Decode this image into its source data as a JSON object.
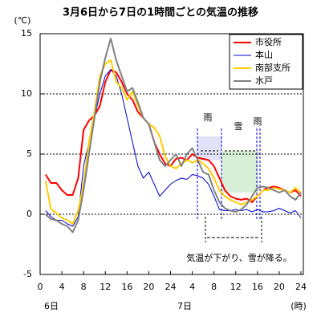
{
  "chart_data": {
    "type": "line",
    "title": "3月6日から7日の1時間ごとの気温の推移",
    "y_label": "(℃)",
    "x_label": "(時)",
    "day_labels": [
      "6日",
      "7日"
    ],
    "annotations": [
      "雨",
      "雪",
      "雨",
      "気温が下がり、雪が降る。"
    ],
    "x": [
      1,
      2,
      3,
      4,
      5,
      6,
      7,
      8,
      9,
      10,
      11,
      12,
      13,
      14,
      15,
      16,
      17,
      18,
      19,
      20,
      21,
      22,
      23,
      24,
      25,
      26,
      27,
      28,
      29,
      30,
      31,
      32,
      33,
      34,
      35,
      36,
      37,
      38,
      39,
      40,
      41,
      42,
      43,
      44,
      45,
      46,
      47,
      48
    ],
    "series": [
      {
        "name": "市役所",
        "color": "#ff0000",
        "values": [
          3.3,
          2.6,
          2.6,
          2.0,
          1.6,
          1.6,
          3.0,
          7.0,
          7.8,
          8.2,
          9.0,
          11.0,
          12.0,
          11.8,
          11.0,
          10.0,
          9.5,
          8.5,
          8.0,
          7.5,
          6.0,
          5.0,
          4.2,
          4.0,
          4.6,
          4.7,
          4.5,
          5.0,
          4.7,
          4.6,
          4.5,
          4.0,
          3.0,
          2.0,
          1.5,
          1.3,
          1.2,
          1.3,
          1.0,
          1.5,
          2.0,
          2.2,
          2.3,
          2.2,
          2.0,
          1.8,
          2.0,
          1.5
        ]
      },
      {
        "name": "本山",
        "color": "#0000cc",
        "values": [
          0.3,
          -0.2,
          -0.5,
          -0.5,
          -0.8,
          -1.0,
          -0.2,
          4.0,
          6.0,
          8.0,
          10.0,
          11.5,
          12.0,
          11.5,
          10.0,
          8.0,
          6.0,
          4.0,
          3.0,
          3.5,
          2.5,
          1.5,
          2.0,
          2.5,
          2.8,
          3.0,
          2.9,
          3.3,
          3.2,
          3.0,
          2.5,
          1.5,
          0.4,
          0.3,
          0.3,
          0.4,
          0.3,
          0.4,
          0.2,
          0.4,
          0.2,
          0.2,
          0.3,
          0.5,
          0.3,
          0.1,
          0.3,
          -0.3
        ]
      },
      {
        "name": "南部支所",
        "color": "#ffcc00",
        "values": [
          2.8,
          0.4,
          0.1,
          -0.3,
          -0.5,
          -0.8,
          0.3,
          2.5,
          6.0,
          8.5,
          11.5,
          12.5,
          12.8,
          11.0,
          10.5,
          9.5,
          10.2,
          9.0,
          8.0,
          7.5,
          7.2,
          6.5,
          4.8,
          4.0,
          3.8,
          4.2,
          4.5,
          4.3,
          4.5,
          4.2,
          3.8,
          3.0,
          2.0,
          1.5,
          1.2,
          1.0,
          0.8,
          1.0,
          1.2,
          1.5,
          2.0,
          2.0,
          2.2,
          2.1,
          2.0,
          1.8,
          2.2,
          1.8
        ]
      },
      {
        "name": "水戸",
        "color": "#808080",
        "values": [
          0.0,
          -0.4,
          -0.5,
          -0.8,
          -1.0,
          -1.5,
          -0.5,
          2.0,
          5.0,
          8.0,
          11.0,
          13.0,
          14.6,
          12.8,
          11.5,
          10.2,
          10.5,
          9.3,
          8.0,
          7.5,
          6.0,
          4.5,
          4.0,
          4.5,
          5.0,
          4.0,
          5.0,
          5.5,
          4.5,
          3.5,
          3.3,
          2.0,
          1.0,
          0.5,
          0.3,
          0.2,
          0.4,
          0.8,
          1.5,
          2.2,
          2.3,
          2.2,
          2.0,
          1.8,
          2.0,
          1.5,
          1.2,
          1.8
        ]
      }
    ],
    "xlim": [
      0,
      48
    ],
    "xticks": [
      0,
      4,
      8,
      12,
      16,
      20,
      24,
      {
        "value": 28,
        "label": "4"
      },
      {
        "value": 32,
        "label": "8"
      },
      {
        "value": 36,
        "label": "12"
      },
      {
        "value": 40,
        "label": "16"
      },
      {
        "value": 44,
        "label": "20"
      },
      {
        "value": 48,
        "label": "24"
      }
    ],
    "ylim": [
      -5,
      15
    ],
    "yticks": [
      -5,
      0,
      5,
      10,
      15
    ],
    "grid": true
  }
}
